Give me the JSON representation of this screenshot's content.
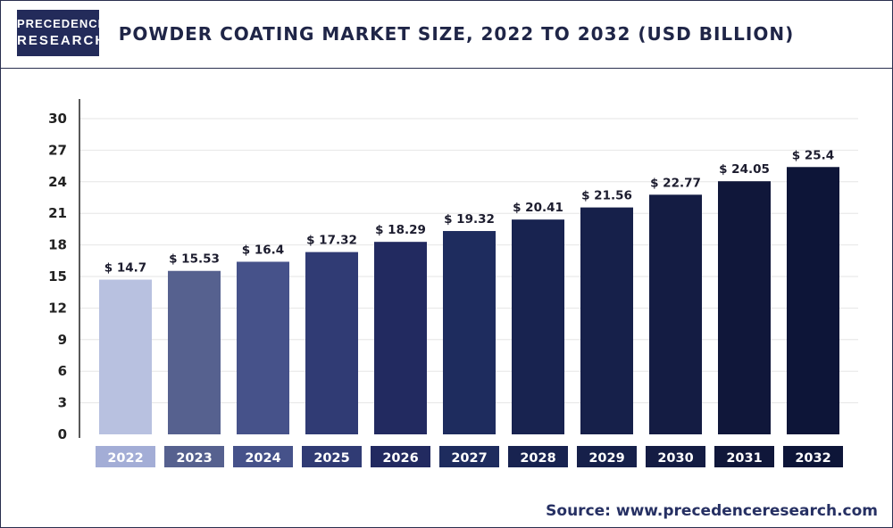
{
  "logo": {
    "line1": "PRECEDENCE",
    "line2": "RESEARCH"
  },
  "title": "POWDER COATING MARKET SIZE, 2022 TO 2032 (USD BILLION)",
  "source": "Source: www.precedenceresearch.com",
  "chart_data": {
    "type": "bar",
    "categories": [
      "2022",
      "2023",
      "2024",
      "2025",
      "2026",
      "2027",
      "2028",
      "2029",
      "2030",
      "2031",
      "2032"
    ],
    "values": [
      14.7,
      15.53,
      16.4,
      17.32,
      18.29,
      19.32,
      20.41,
      21.56,
      22.77,
      24.05,
      25.4
    ],
    "data_labels": [
      "$ 14.7",
      "$ 15.53",
      "$ 16.4",
      "$ 17.32",
      "$ 18.29",
      "$ 19.32",
      "$ 20.41",
      "$ 21.56",
      "$ 22.77",
      "$ 24.05",
      "$ 25.4"
    ],
    "title": "POWDER COATING MARKET SIZE, 2022 TO 2032 (USD BILLION)",
    "xlabel": "",
    "ylabel": "",
    "ylim": [
      0,
      30
    ],
    "yticks": [
      0,
      3,
      6,
      9,
      12,
      15,
      18,
      21,
      24,
      27,
      30
    ],
    "grid": true,
    "bar_colors": [
      "#b8c1e0",
      "#56618f",
      "#46528a",
      "#303b74",
      "#222a60",
      "#1e2c5e",
      "#182350",
      "#16204a",
      "#141c43",
      "#10173a",
      "#0d1538"
    ],
    "label_box_colors": [
      "#a3add6",
      "#56618f",
      "#46528a",
      "#303b74",
      "#222a60",
      "#1e2c5e",
      "#182350",
      "#16204a",
      "#141c43",
      "#10173a",
      "#0d1538"
    ]
  }
}
